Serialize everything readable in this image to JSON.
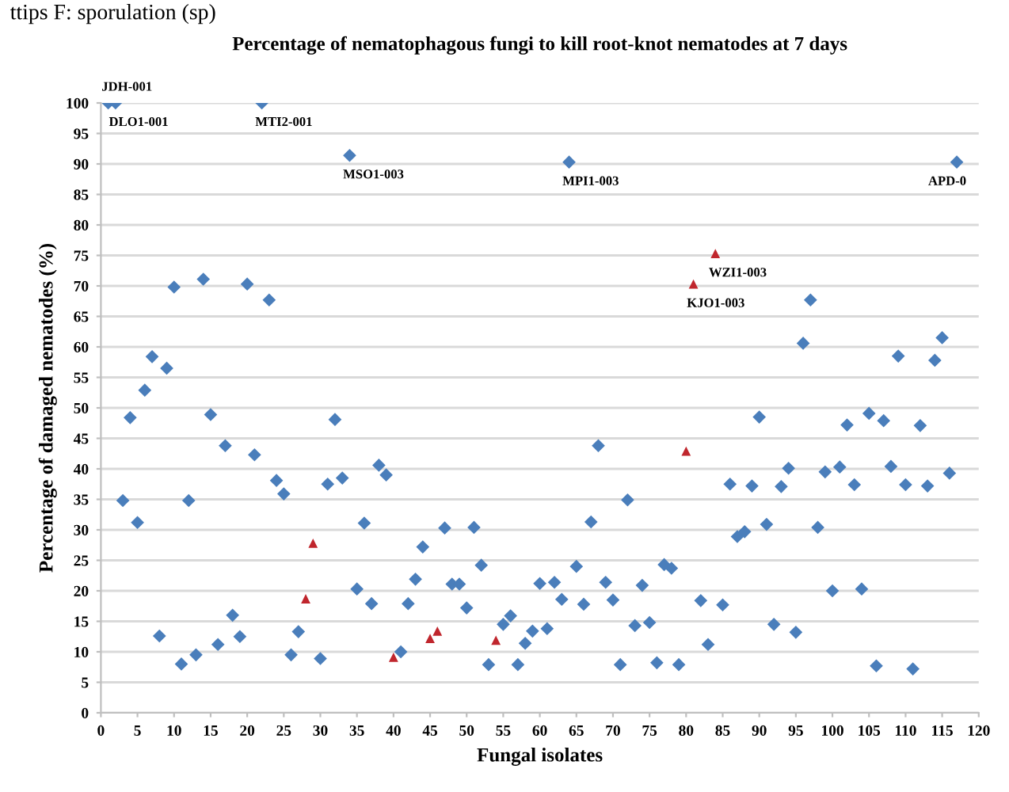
{
  "chart_data": {
    "type": "scatter",
    "title": "Percentage of nematophagous fungi to kill root-knot nematodes at 7 days",
    "xlabel": "Fungal isolates",
    "ylabel": "Percentage of damaged nematodes (%)",
    "xlim": [
      0,
      120
    ],
    "xticks": [
      0,
      5,
      10,
      15,
      20,
      25,
      30,
      35,
      40,
      45,
      50,
      55,
      60,
      65,
      70,
      75,
      80,
      85,
      90,
      95,
      100,
      105,
      110,
      115,
      120
    ],
    "ylim": [
      0,
      100
    ],
    "yticks": [
      0,
      5,
      10,
      15,
      20,
      25,
      30,
      35,
      40,
      45,
      50,
      55,
      60,
      65,
      70,
      75,
      80,
      85,
      90,
      95,
      100
    ],
    "grid": "y",
    "legend": false,
    "series": [
      {
        "color": "#4a7ebb",
        "marker": "diamond",
        "x": [
          1,
          2,
          3,
          4,
          5,
          6,
          7,
          8,
          9,
          10,
          11,
          12,
          13,
          14,
          15,
          16,
          17,
          18,
          19,
          20,
          21,
          22,
          23,
          24,
          25,
          26,
          27,
          30,
          31,
          32,
          33,
          34,
          35,
          36,
          37,
          38,
          39,
          41,
          42,
          43,
          44,
          47,
          48,
          49,
          50,
          51,
          52,
          53,
          55,
          56,
          57,
          58,
          59,
          60,
          61,
          62,
          63,
          64,
          65,
          66,
          67,
          68,
          69,
          70,
          71,
          72,
          73,
          74,
          75,
          76,
          77,
          78,
          79,
          82,
          83,
          85,
          86,
          87,
          88,
          89,
          90,
          91,
          92,
          93,
          94,
          95,
          96,
          97,
          98,
          99,
          100,
          101,
          102,
          103,
          104,
          105,
          106,
          107,
          108,
          109,
          110,
          111,
          112,
          113,
          114,
          115,
          116,
          117
        ],
        "values": [
          100,
          100,
          34.8,
          48.4,
          31.2,
          52.9,
          58.4,
          12.6,
          56.5,
          69.8,
          8,
          34.8,
          9.5,
          71.1,
          48.9,
          11.2,
          43.8,
          16,
          12.5,
          70.3,
          42.3,
          100,
          67.7,
          38.1,
          35.9,
          9.5,
          13.3,
          8.9,
          37.5,
          48.1,
          38.5,
          91.4,
          20.3,
          31.1,
          17.9,
          40.6,
          39,
          10,
          17.9,
          21.9,
          27.2,
          30.3,
          21.1,
          21.1,
          17.2,
          30.4,
          24.2,
          7.9,
          14.5,
          15.9,
          7.9,
          11.4,
          13.4,
          21.2,
          13.8,
          21.4,
          18.6,
          90.3,
          24,
          17.8,
          31.3,
          43.8,
          21.4,
          18.5,
          7.9,
          34.9,
          14.3,
          20.9,
          14.8,
          8.2,
          24.3,
          23.7,
          7.9,
          18.4,
          11.2,
          17.7,
          37.5,
          28.9,
          29.7,
          37.2,
          48.5,
          30.9,
          14.5,
          37.1,
          40.1,
          13.2,
          60.6,
          67.7,
          30.4,
          39.5,
          20,
          40.3,
          47.2,
          37.4,
          20.3,
          49.1,
          7.7,
          47.9,
          40.4,
          58.5,
          37.4,
          7.2,
          47.1,
          37.2,
          57.8,
          61.5,
          39.3,
          90.3
        ]
      },
      {
        "color": "#c0262d",
        "marker": "triangle",
        "x": [
          28,
          29,
          40,
          45,
          46,
          54,
          80,
          81,
          84
        ],
        "values": [
          18.7,
          27.8,
          9.1,
          12.2,
          13.4,
          11.9,
          42.9,
          70.3,
          75.3
        ]
      }
    ],
    "annotations": [
      "ttips F: sporulation (sp)",
      {
        "text": "JDH-001",
        "x": 1,
        "y": 100
      },
      {
        "text": "DLO1-001",
        "x": 2,
        "y": 100
      },
      {
        "text": "MTI2-001",
        "x": 22,
        "y": 100
      },
      {
        "text": "MSO1-003",
        "x": 34,
        "y": 91.4
      },
      {
        "text": "MPI1-003",
        "x": 64,
        "y": 90.3
      },
      {
        "text": "APD-0",
        "x": 117,
        "y": 90.3
      },
      {
        "text": "WZI1-003",
        "x": 84,
        "y": 75.3
      },
      {
        "text": "KJO1-003",
        "x": 81,
        "y": 70.3
      }
    ]
  }
}
